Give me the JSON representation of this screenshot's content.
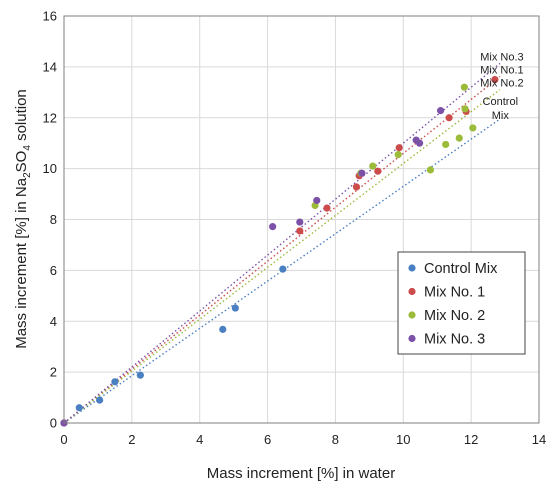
{
  "chart_data": {
    "type": "scatter",
    "title": "",
    "xlabel": "Mass increment  [%] in water",
    "ylabel_parts": [
      "Mass increment  [%] in Na",
      "2",
      "SO",
      "4",
      " solution"
    ],
    "xlim": [
      0,
      14
    ],
    "ylim": [
      0,
      16
    ],
    "xticks": [
      "0",
      "2",
      "4",
      "6",
      "8",
      "10",
      "12",
      "14"
    ],
    "yticks": [
      "0",
      "2",
      "4",
      "6",
      "8",
      "10",
      "12",
      "14",
      "16"
    ],
    "grid": true,
    "legend_position": "lower-right",
    "series": [
      {
        "name": "Control Mix",
        "color": "#4a7fc1",
        "points": [
          [
            0,
            0
          ],
          [
            0.45,
            0.6
          ],
          [
            1.05,
            0.9
          ],
          [
            1.5,
            1.62
          ],
          [
            2.25,
            1.88
          ],
          [
            4.68,
            3.68
          ],
          [
            5.05,
            4.52
          ],
          [
            6.45,
            6.05
          ]
        ],
        "trendline": {
          "slope": 0.93,
          "x_end": 12.8,
          "label": [
            "Control",
            "Mix"
          ]
        }
      },
      {
        "name": "Mix No. 1",
        "color": "#cc4b4b",
        "points": [
          [
            0,
            0
          ],
          [
            6.95,
            7.55
          ],
          [
            7.75,
            8.45
          ],
          [
            8.62,
            9.28
          ],
          [
            8.7,
            9.72
          ],
          [
            9.25,
            9.9
          ],
          [
            9.88,
            10.82
          ],
          [
            11.35,
            12.0
          ],
          [
            11.85,
            12.25
          ],
          [
            12.7,
            13.5
          ]
        ],
        "trendline": {
          "slope": 1.06,
          "x_end": 12.85,
          "label": [
            "Mix No.1"
          ]
        }
      },
      {
        "name": "Mix No. 2",
        "color": "#9bbb39",
        "points": [
          [
            0,
            0
          ],
          [
            7.4,
            8.55
          ],
          [
            8.75,
            9.82
          ],
          [
            9.1,
            10.1
          ],
          [
            9.85,
            10.55
          ],
          [
            10.8,
            9.95
          ],
          [
            11.25,
            10.95
          ],
          [
            11.65,
            11.2
          ],
          [
            11.8,
            13.2
          ],
          [
            11.82,
            12.35
          ],
          [
            12.05,
            11.6
          ]
        ],
        "trendline": {
          "slope": 1.02,
          "x_end": 12.85,
          "label": [
            "Mix No.2"
          ]
        }
      },
      {
        "name": "Mix No. 3",
        "color": "#7b52a8",
        "points": [
          [
            0,
            0
          ],
          [
            6.15,
            7.72
          ],
          [
            6.95,
            7.9
          ],
          [
            7.45,
            8.75
          ],
          [
            8.78,
            9.82
          ],
          [
            10.38,
            11.12
          ],
          [
            10.48,
            11.0
          ],
          [
            11.1,
            12.28
          ]
        ],
        "trendline": {
          "slope": 1.1,
          "x_end": 12.85,
          "label": [
            "Mix No.3"
          ]
        }
      }
    ]
  }
}
